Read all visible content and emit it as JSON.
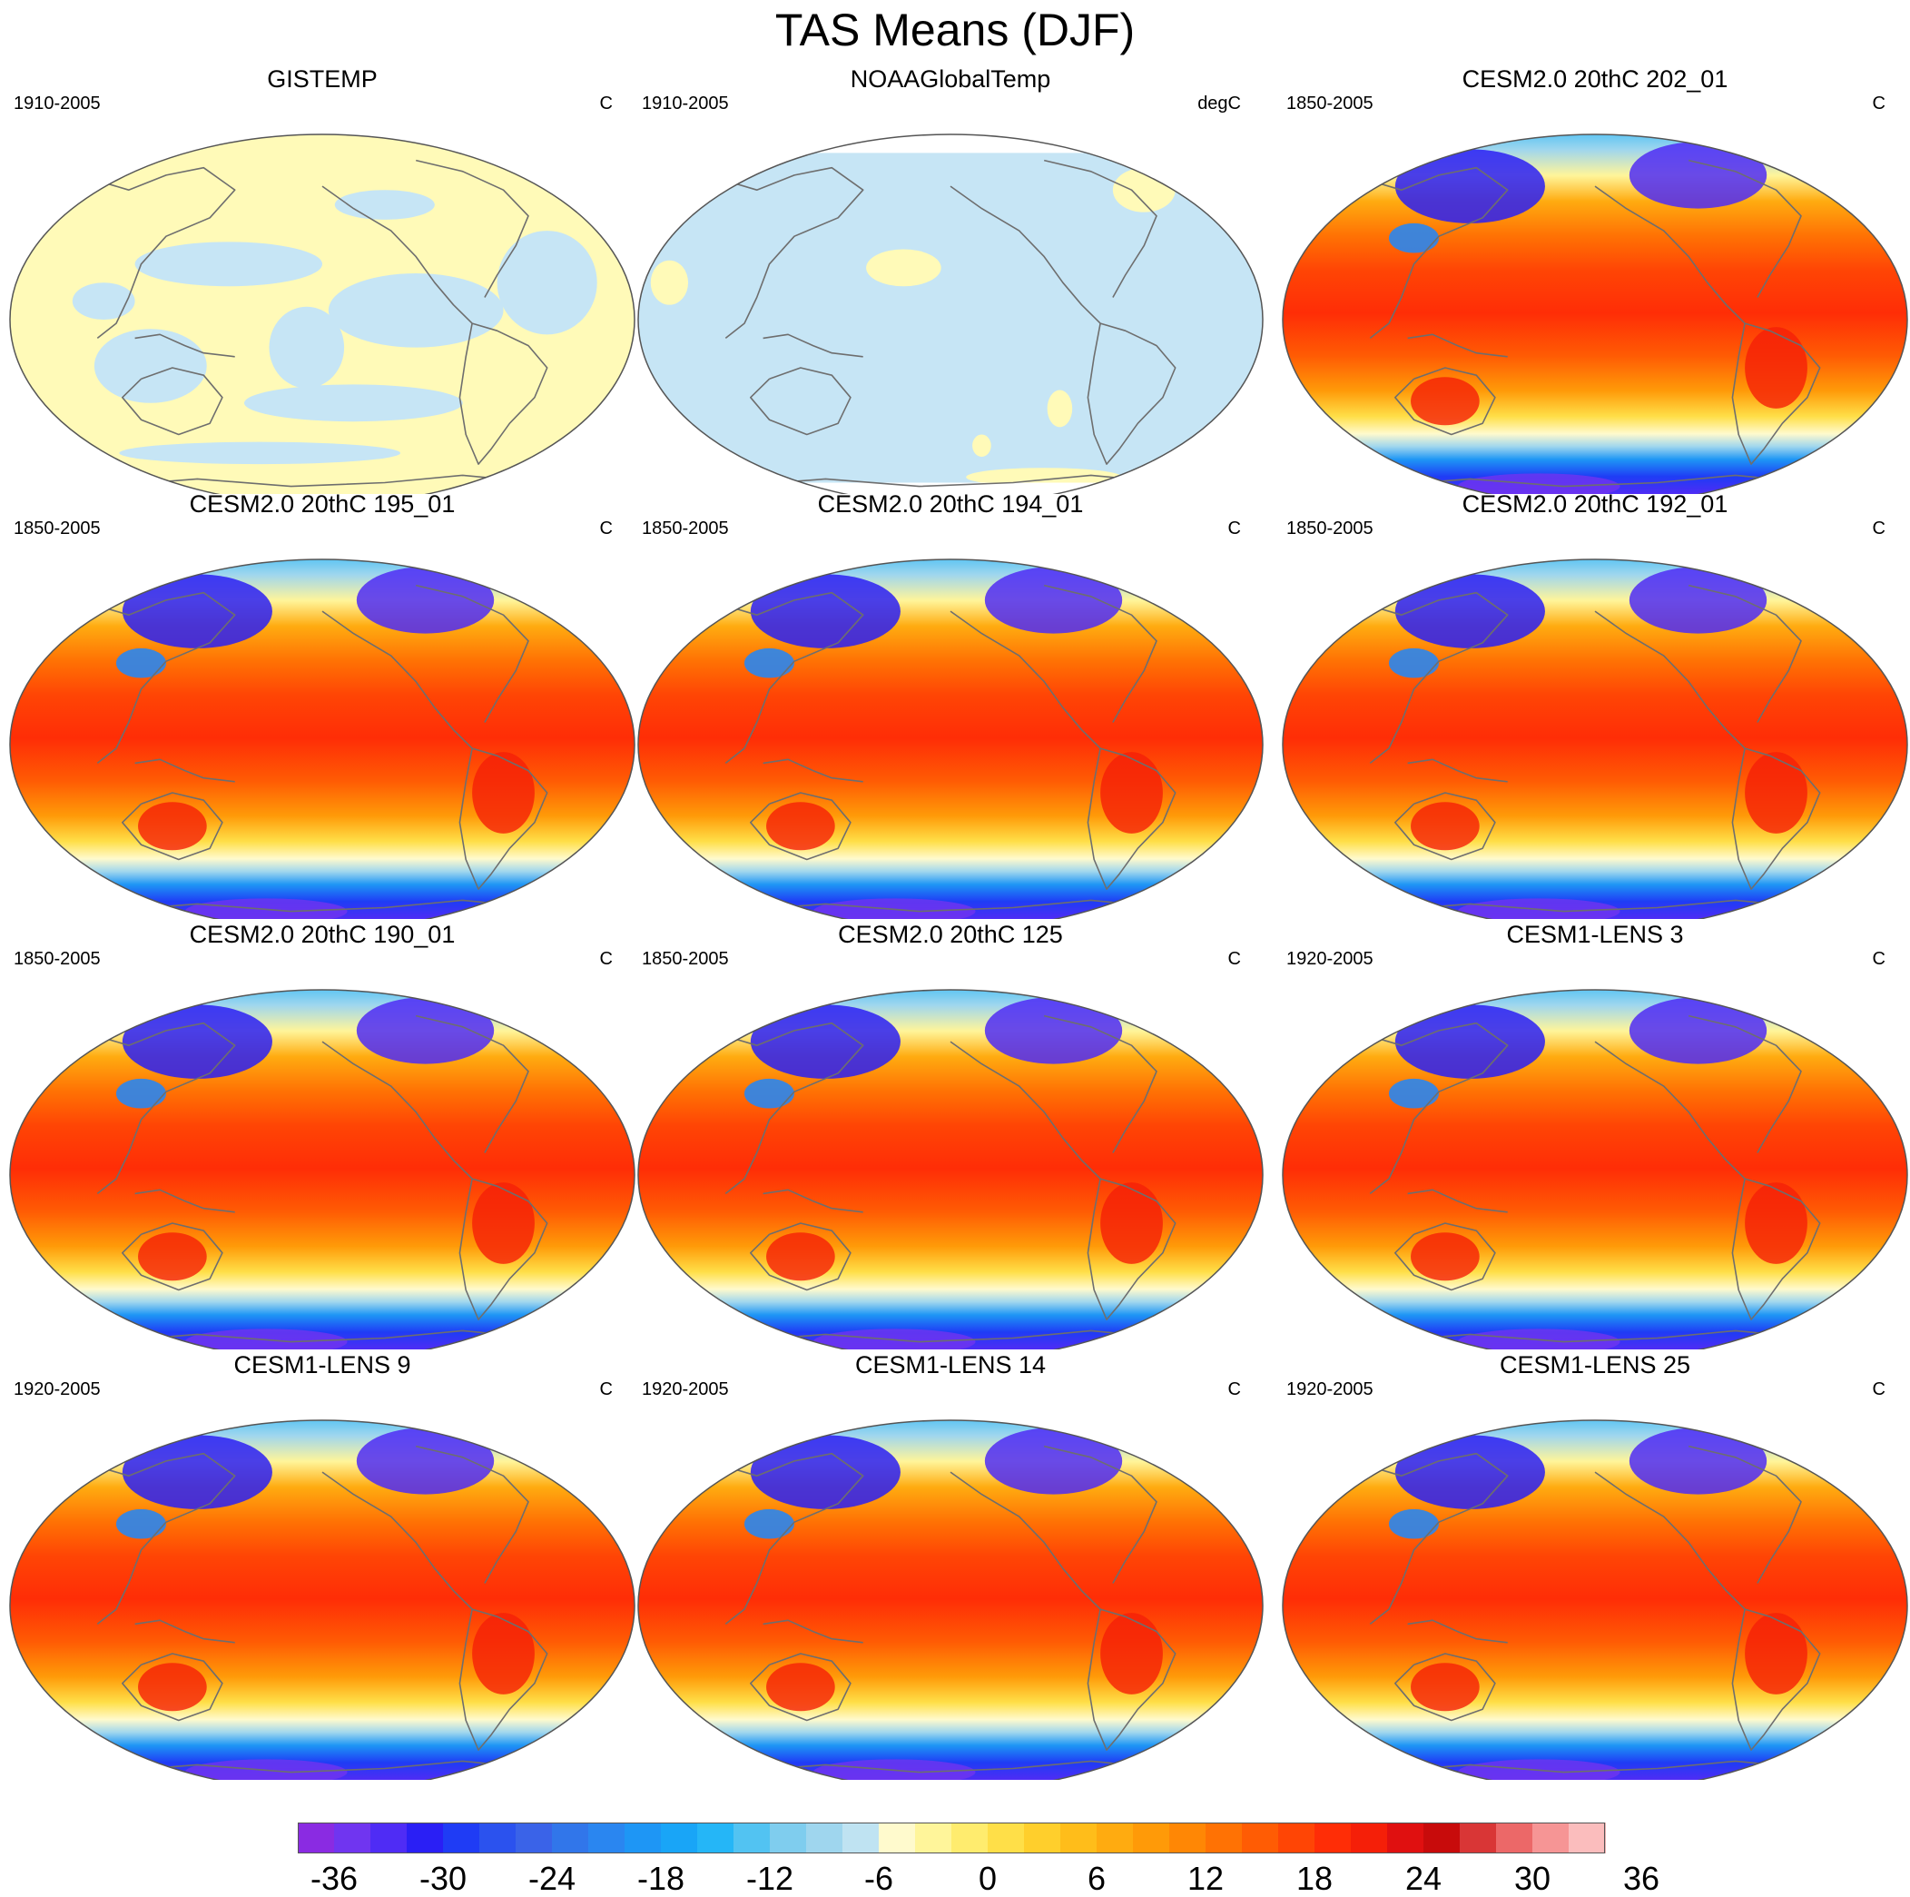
{
  "title": "TAS Means (DJF)",
  "panels": [
    {
      "name": "GISTEMP",
      "years": "1910-2005",
      "units": "C",
      "kind": "obs1"
    },
    {
      "name": "NOAAGlobalTemp",
      "years": "1910-2005",
      "units": "degC",
      "kind": "obs2"
    },
    {
      "name": "CESM2.0 20thC 202_01",
      "years": "1850-2005",
      "units": "C",
      "kind": "model"
    },
    {
      "name": "CESM2.0 20thC 195_01",
      "years": "1850-2005",
      "units": "C",
      "kind": "model"
    },
    {
      "name": "CESM2.0 20thC 194_01",
      "years": "1850-2005",
      "units": "C",
      "kind": "model"
    },
    {
      "name": "CESM2.0 20thC 192_01",
      "years": "1850-2005",
      "units": "C",
      "kind": "model"
    },
    {
      "name": "CESM2.0 20thC 190_01",
      "years": "1850-2005",
      "units": "C",
      "kind": "model"
    },
    {
      "name": "CESM2.0 20thC 125",
      "years": "1850-2005",
      "units": "C",
      "kind": "model"
    },
    {
      "name": "CESM1-LENS 3",
      "years": "1920-2005",
      "units": "C",
      "kind": "model"
    },
    {
      "name": "CESM1-LENS 9",
      "years": "1920-2005",
      "units": "C",
      "kind": "model"
    },
    {
      "name": "CESM1-LENS 14",
      "years": "1920-2005",
      "units": "C",
      "kind": "model"
    },
    {
      "name": "CESM1-LENS 25",
      "years": "1920-2005",
      "units": "C",
      "kind": "model"
    }
  ],
  "colorbar": {
    "labels": [
      "-36",
      "-30",
      "-24",
      "-18",
      "-12",
      "-6",
      "0",
      "6",
      "12",
      "18",
      "24",
      "30",
      "36"
    ],
    "colors": [
      "#8a2be2",
      "#7035f0",
      "#4f2cf5",
      "#2a1ff5",
      "#1f3cf5",
      "#2b52ee",
      "#3a63e8",
      "#3176ea",
      "#2a86f0",
      "#1e96f5",
      "#19a5f7",
      "#25b6f7",
      "#52c3f2",
      "#7fcdee",
      "#9fd6ee",
      "#bfe3f2",
      "#fffacd",
      "#fff59a",
      "#ffec6e",
      "#ffdf48",
      "#ffcf2c",
      "#ffbd1a",
      "#ffab10",
      "#ff9a08",
      "#ff8705",
      "#ff7204",
      "#ff5c04",
      "#ff4505",
      "#ff2d06",
      "#f51f08",
      "#e01010",
      "#c80b0b",
      "#d93636",
      "#ec6868",
      "#f69595",
      "#fbbdbd"
    ]
  },
  "colors": {
    "obs_warm": "#fffab8",
    "obs_cool": "#c6e5f5",
    "ocean_deep_cold": "#1f3cf5",
    "coast": "#6e6e6e"
  }
}
